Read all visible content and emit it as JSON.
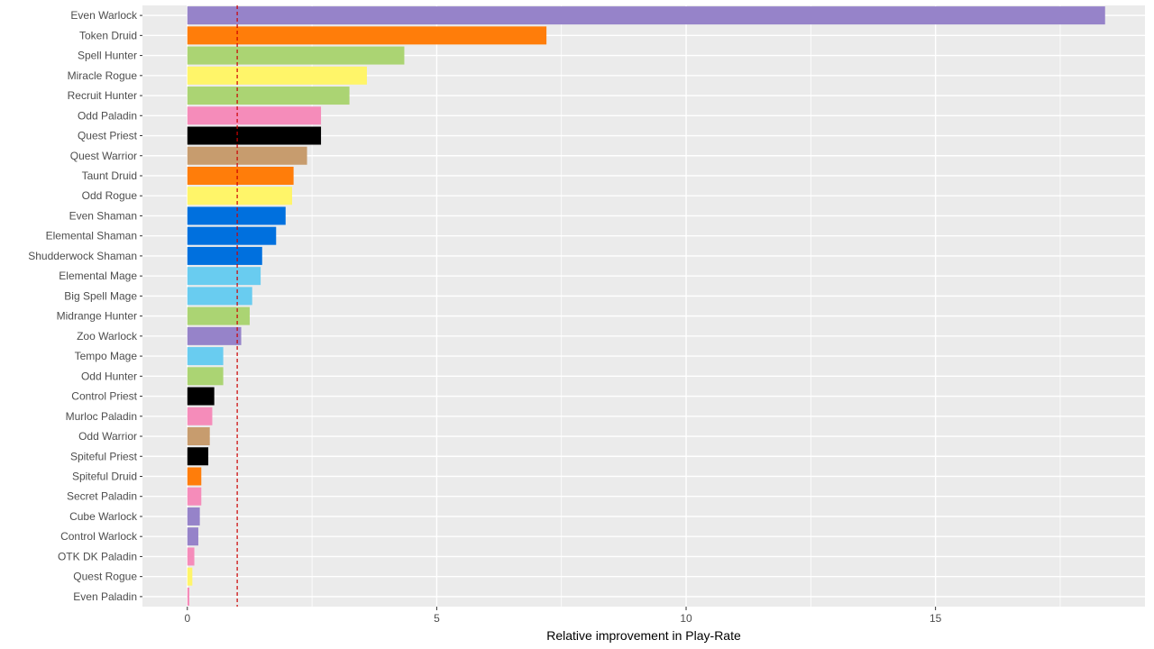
{
  "chart_data": {
    "type": "bar",
    "orientation": "horizontal",
    "xlabel": "Relative improvement in Play-Rate",
    "ylabel": "",
    "xlim": [
      -0.9,
      19.2
    ],
    "x_ticks": [
      0,
      5,
      10,
      15
    ],
    "reference_line": {
      "x": 1,
      "color": "#cc0000",
      "style": "dashed"
    },
    "grid": true,
    "legend": "none",
    "panel_background": "#ebebeb",
    "gridline_color": "#ffffff",
    "categories": [
      "Even Warlock",
      "Token Druid",
      "Spell Hunter",
      "Miracle Rogue",
      "Recruit Hunter",
      "Odd Paladin",
      "Quest Priest",
      "Quest Warrior",
      "Taunt Druid",
      "Odd Rogue",
      "Even Shaman",
      "Elemental Shaman",
      "Shudderwock Shaman",
      "Elemental Mage",
      "Big Spell Mage",
      "Midrange Hunter",
      "Zoo Warlock",
      "Tempo Mage",
      "Odd Hunter",
      "Control Priest",
      "Murloc Paladin",
      "Odd Warrior",
      "Spiteful Priest",
      "Spiteful Druid",
      "Secret Paladin",
      "Cube Warlock",
      "Control Warlock",
      "OTK DK Paladin",
      "Quest Rogue",
      "Even Paladin"
    ],
    "values": [
      18.4,
      7.2,
      4.35,
      3.6,
      3.25,
      2.68,
      2.68,
      2.4,
      2.13,
      2.1,
      1.97,
      1.78,
      1.5,
      1.47,
      1.3,
      1.25,
      1.08,
      0.72,
      0.72,
      0.54,
      0.5,
      0.45,
      0.42,
      0.28,
      0.28,
      0.25,
      0.22,
      0.14,
      0.1,
      0.04
    ],
    "colors": [
      "#9683c9",
      "#ff7d0a",
      "#abd473",
      "#fff569",
      "#abd473",
      "#f58cba",
      "#000000",
      "#c79c6e",
      "#ff7d0a",
      "#fff569",
      "#0070de",
      "#0070de",
      "#0070de",
      "#69ccf0",
      "#69ccf0",
      "#abd473",
      "#9683c9",
      "#69ccf0",
      "#abd473",
      "#000000",
      "#f58cba",
      "#c79c6e",
      "#000000",
      "#ff7d0a",
      "#f58cba",
      "#9683c9",
      "#9683c9",
      "#f58cba",
      "#fff569",
      "#f58cba"
    ]
  }
}
